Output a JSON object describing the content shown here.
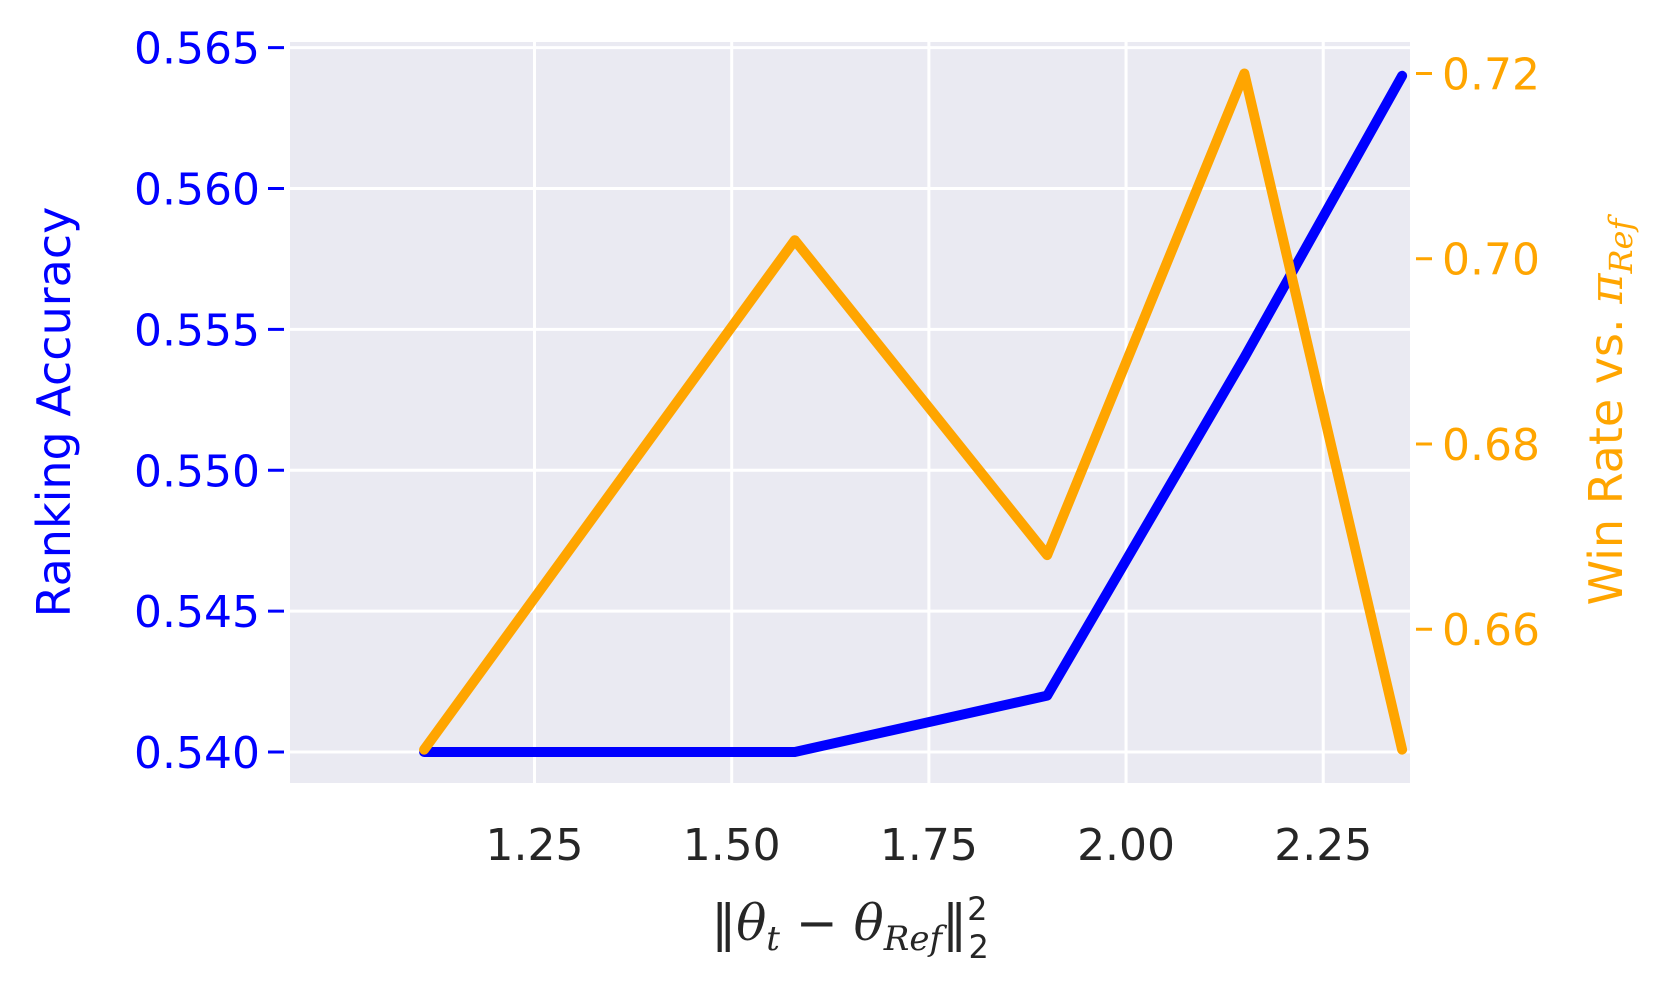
{
  "chart_data": {
    "type": "line",
    "x": [
      1.11,
      1.58,
      1.9,
      2.15,
      2.35
    ],
    "xticks": [
      "1.25",
      "1.50",
      "1.75",
      "2.00",
      "2.25"
    ],
    "xtick_values": [
      1.25,
      1.5,
      1.75,
      2.0,
      2.25
    ],
    "xlim": [
      0.94,
      2.36
    ],
    "xlabel_parts": {
      "norm": "‖",
      "theta": "θ",
      "sub_t": "t",
      "minus": " − ",
      "sub_ref": "Ref",
      "sup2": "2",
      "sub2": "2"
    },
    "y_left": {
      "label": "Ranking Accuracy",
      "ticks": [
        "0.540",
        "0.545",
        "0.550",
        "0.555",
        "0.560",
        "0.565"
      ],
      "tick_values": [
        0.54,
        0.545,
        0.55,
        0.555,
        0.56,
        0.565
      ],
      "ylim": [
        0.5389,
        0.5652
      ],
      "color": "#0000ff"
    },
    "y_right": {
      "label_prefix": "Win Rate vs. ",
      "label_pi": "π",
      "label_sub": "Ref",
      "ticks": [
        "0.66",
        "0.68",
        "0.70",
        "0.72"
      ],
      "tick_values": [
        0.66,
        0.68,
        0.7,
        0.72
      ],
      "ylim": [
        0.6434,
        0.7234
      ],
      "color": "#ffa500"
    },
    "series": [
      {
        "axis": "left",
        "color": "#0000ff",
        "values": [
          0.54,
          0.54,
          0.542,
          0.554,
          0.564
        ]
      },
      {
        "axis": "right",
        "color": "#ffa500",
        "values": [
          0.647,
          0.702,
          0.668,
          0.72,
          0.647
        ]
      }
    ],
    "grid": true,
    "background": "#eaeaf2"
  }
}
